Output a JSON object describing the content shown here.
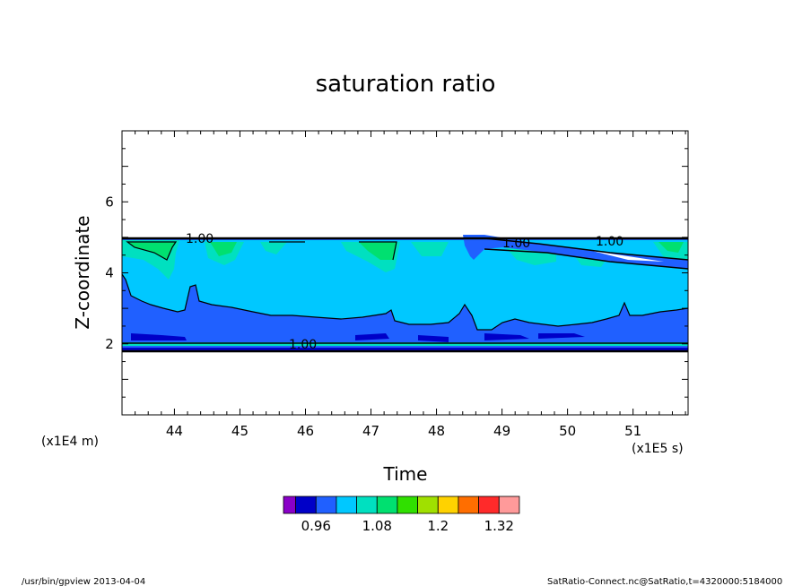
{
  "chart_data": {
    "type": "heatmap",
    "title": "saturation ratio",
    "xlabel": "Time",
    "ylabel": "Z-coordinate",
    "x_unit": "(x1E5 s)",
    "y_unit": "(x1E4 m)",
    "xlim": [
      43.2,
      51.84
    ],
    "ylim": [
      0,
      8
    ],
    "x_ticks": [
      "44",
      "45",
      "46",
      "47",
      "48",
      "49",
      "50",
      "51"
    ],
    "x_tick_values": [
      44,
      45,
      46,
      47,
      48,
      49,
      50,
      51
    ],
    "y_ticks": [
      "2",
      "4",
      "6"
    ],
    "y_tick_values": [
      2,
      4,
      6
    ],
    "contour_labels": [
      "1.00",
      "1.00",
      "1.00",
      "1.00"
    ],
    "layer_bottom": 1.8,
    "layer_top": 5.0,
    "colorbar": {
      "colors": [
        "#8a00c8",
        "#0000c8",
        "#2060ff",
        "#00c8ff",
        "#00e0c0",
        "#00e070",
        "#30e000",
        "#a0e000",
        "#ffd200",
        "#ff6e00",
        "#ff2a2a",
        "#ff9a9a"
      ],
      "tick_labels": [
        "0.96",
        "1.08",
        "1.2",
        "1.32"
      ],
      "grid": "off",
      "legend": "bottom"
    }
  },
  "footer": {
    "left": "/usr/bin/gpview   2013-04-04",
    "right": "SatRatio-Connect.nc@SatRatio,t=4320000:5184000"
  }
}
